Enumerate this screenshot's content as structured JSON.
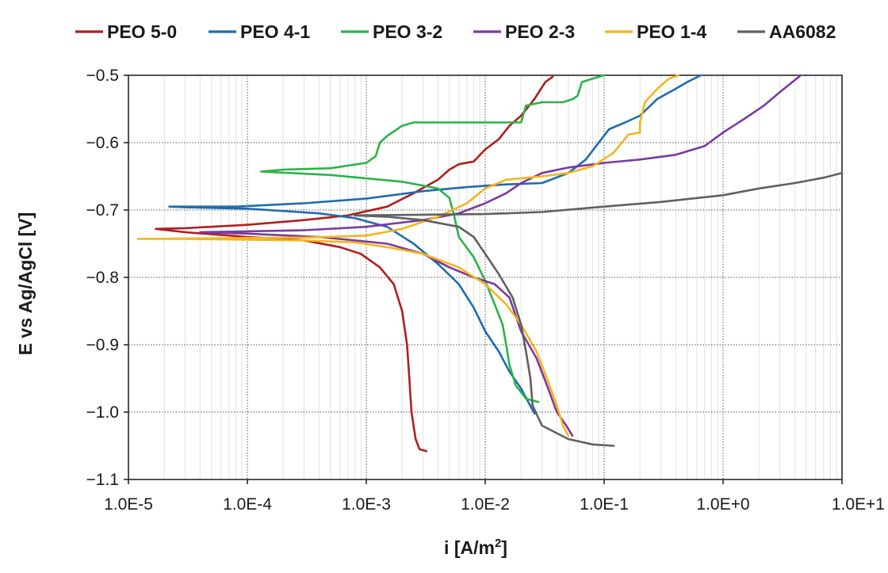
{
  "chart_data": {
    "type": "line",
    "xscale": "log",
    "xlabel": "i [A/m",
    "xlabel_superscript": "2",
    "xlabel_suffix": "]",
    "ylabel": "E  vs Ag/AgCl [V]",
    "xlim": [
      1e-05,
      10
    ],
    "ylim": [
      -1.1,
      -0.5
    ],
    "x_ticks": [
      1e-05,
      0.0001,
      0.001,
      0.01,
      0.1,
      1,
      10
    ],
    "x_tick_labels": [
      "1.0E-5",
      "1.0E-4",
      "1.0E-3",
      "1.0E-2",
      "1.0E-1",
      "1.0E+0",
      "1.0E+1"
    ],
    "y_ticks": [
      -0.5,
      -0.6,
      -0.7,
      -0.8,
      -0.9,
      -1.0,
      -1.1
    ],
    "y_tick_labels": [
      "−0.5",
      "−0.6",
      "−0.7",
      "−0.8",
      "−0.9",
      "−1.0",
      "−1.1"
    ],
    "grid": true,
    "legend_position": "top",
    "series": [
      {
        "name": "PEO 5-0",
        "color": "#b21e1e",
        "points": [
          [
            0.0032,
            -1.058
          ],
          [
            0.0028,
            -1.055
          ],
          [
            0.0026,
            -1.04
          ],
          [
            0.0024,
            -1.0
          ],
          [
            0.0023,
            -0.95
          ],
          [
            0.0022,
            -0.9
          ],
          [
            0.002,
            -0.85
          ],
          [
            0.0017,
            -0.81
          ],
          [
            0.0013,
            -0.785
          ],
          [
            0.0009,
            -0.765
          ],
          [
            0.0006,
            -0.755
          ],
          [
            0.0003,
            -0.745
          ],
          [
            0.0001,
            -0.74
          ],
          [
            3e-05,
            -0.733
          ],
          [
            1.7e-05,
            -0.728
          ],
          [
            3e-05,
            -0.727
          ],
          [
            0.0001,
            -0.722
          ],
          [
            0.0003,
            -0.715
          ],
          [
            0.0007,
            -0.708
          ],
          [
            0.0015,
            -0.695
          ],
          [
            0.0025,
            -0.675
          ],
          [
            0.004,
            -0.655
          ],
          [
            0.005,
            -0.64
          ],
          [
            0.006,
            -0.632
          ],
          [
            0.008,
            -0.628
          ],
          [
            0.01,
            -0.61
          ],
          [
            0.013,
            -0.595
          ],
          [
            0.016,
            -0.575
          ],
          [
            0.02,
            -0.56
          ],
          [
            0.026,
            -0.535
          ],
          [
            0.032,
            -0.51
          ],
          [
            0.037,
            -0.502
          ]
        ]
      },
      {
        "name": "PEO 4-1",
        "color": "#1f6cb0",
        "points": [
          [
            0.026,
            -1.002
          ],
          [
            0.023,
            -0.985
          ],
          [
            0.02,
            -0.965
          ],
          [
            0.016,
            -0.94
          ],
          [
            0.013,
            -0.91
          ],
          [
            0.01,
            -0.88
          ],
          [
            0.008,
            -0.845
          ],
          [
            0.006,
            -0.81
          ],
          [
            0.004,
            -0.78
          ],
          [
            0.0025,
            -0.75
          ],
          [
            0.0015,
            -0.725
          ],
          [
            0.0008,
            -0.712
          ],
          [
            0.0004,
            -0.705
          ],
          [
            0.0001,
            -0.698
          ],
          [
            3e-05,
            -0.696
          ],
          [
            2.2e-05,
            -0.695
          ],
          [
            8e-05,
            -0.695
          ],
          [
            0.0003,
            -0.69
          ],
          [
            0.001,
            -0.683
          ],
          [
            0.003,
            -0.672
          ],
          [
            0.007,
            -0.666
          ],
          [
            0.015,
            -0.662
          ],
          [
            0.03,
            -0.66
          ],
          [
            0.05,
            -0.645
          ],
          [
            0.07,
            -0.625
          ],
          [
            0.09,
            -0.6
          ],
          [
            0.11,
            -0.58
          ],
          [
            0.15,
            -0.57
          ],
          [
            0.2,
            -0.56
          ],
          [
            0.28,
            -0.535
          ],
          [
            0.4,
            -0.52
          ],
          [
            0.5,
            -0.51
          ],
          [
            0.65,
            -0.5
          ]
        ]
      },
      {
        "name": "PEO 3-2",
        "color": "#2bb34a",
        "points": [
          [
            0.028,
            -0.985
          ],
          [
            0.022,
            -0.98
          ],
          [
            0.018,
            -0.96
          ],
          [
            0.016,
            -0.93
          ],
          [
            0.015,
            -0.9
          ],
          [
            0.014,
            -0.87
          ],
          [
            0.012,
            -0.84
          ],
          [
            0.01,
            -0.805
          ],
          [
            0.008,
            -0.77
          ],
          [
            0.006,
            -0.74
          ],
          [
            0.0055,
            -0.71
          ],
          [
            0.005,
            -0.682
          ],
          [
            0.004,
            -0.668
          ],
          [
            0.002,
            -0.658
          ],
          [
            0.0005,
            -0.648
          ],
          [
            0.00013,
            -0.643
          ],
          [
            0.0002,
            -0.64
          ],
          [
            0.0005,
            -0.638
          ],
          [
            0.001,
            -0.63
          ],
          [
            0.0012,
            -0.62
          ],
          [
            0.0013,
            -0.6
          ],
          [
            0.0015,
            -0.59
          ],
          [
            0.002,
            -0.575
          ],
          [
            0.0025,
            -0.57
          ],
          [
            0.006,
            -0.57
          ],
          [
            0.02,
            -0.57
          ],
          [
            0.022,
            -0.545
          ],
          [
            0.03,
            -0.54
          ],
          [
            0.045,
            -0.54
          ],
          [
            0.055,
            -0.535
          ],
          [
            0.06,
            -0.53
          ],
          [
            0.065,
            -0.51
          ],
          [
            0.08,
            -0.505
          ],
          [
            0.1,
            -0.5
          ]
        ]
      },
      {
        "name": "PEO 2-3",
        "color": "#7a3aa3",
        "points": [
          [
            0.054,
            -1.035
          ],
          [
            0.048,
            -1.02
          ],
          [
            0.04,
            -1.0
          ],
          [
            0.033,
            -0.96
          ],
          [
            0.027,
            -0.92
          ],
          [
            0.02,
            -0.88
          ],
          [
            0.016,
            -0.83
          ],
          [
            0.012,
            -0.81
          ],
          [
            0.008,
            -0.8
          ],
          [
            0.005,
            -0.785
          ],
          [
            0.003,
            -0.765
          ],
          [
            0.0015,
            -0.75
          ],
          [
            0.0008,
            -0.745
          ],
          [
            0.0004,
            -0.74
          ],
          [
            0.0001,
            -0.735
          ],
          [
            4e-05,
            -0.733
          ],
          [
            8e-05,
            -0.732
          ],
          [
            0.0003,
            -0.73
          ],
          [
            0.001,
            -0.725
          ],
          [
            0.003,
            -0.715
          ],
          [
            0.006,
            -0.705
          ],
          [
            0.01,
            -0.69
          ],
          [
            0.015,
            -0.675
          ],
          [
            0.02,
            -0.66
          ],
          [
            0.03,
            -0.645
          ],
          [
            0.05,
            -0.637
          ],
          [
            0.1,
            -0.63
          ],
          [
            0.2,
            -0.625
          ],
          [
            0.4,
            -0.618
          ],
          [
            0.7,
            -0.605
          ],
          [
            1.0,
            -0.585
          ],
          [
            1.5,
            -0.565
          ],
          [
            2.2,
            -0.545
          ],
          [
            3.0,
            -0.525
          ],
          [
            4.5,
            -0.5
          ]
        ]
      },
      {
        "name": "PEO 1-4",
        "color": "#f5b51b",
        "points": [
          [
            0.05,
            -1.035
          ],
          [
            0.045,
            -1.02
          ],
          [
            0.04,
            -0.99
          ],
          [
            0.033,
            -0.95
          ],
          [
            0.027,
            -0.91
          ],
          [
            0.02,
            -0.87
          ],
          [
            0.015,
            -0.84
          ],
          [
            0.01,
            -0.81
          ],
          [
            0.006,
            -0.785
          ],
          [
            0.003,
            -0.765
          ],
          [
            0.0015,
            -0.755
          ],
          [
            0.0008,
            -0.748
          ],
          [
            0.0003,
            -0.745
          ],
          [
            0.0001,
            -0.744
          ],
          [
            3e-05,
            -0.743
          ],
          [
            1.2e-05,
            -0.743
          ],
          [
            5e-05,
            -0.742
          ],
          [
            0.0003,
            -0.741
          ],
          [
            0.001,
            -0.738
          ],
          [
            0.002,
            -0.728
          ],
          [
            0.004,
            -0.71
          ],
          [
            0.007,
            -0.69
          ],
          [
            0.01,
            -0.668
          ],
          [
            0.015,
            -0.655
          ],
          [
            0.03,
            -0.65
          ],
          [
            0.05,
            -0.645
          ],
          [
            0.08,
            -0.635
          ],
          [
            0.12,
            -0.615
          ],
          [
            0.16,
            -0.588
          ],
          [
            0.2,
            -0.585
          ],
          [
            0.2,
            -0.57
          ],
          [
            0.22,
            -0.54
          ],
          [
            0.28,
            -0.52
          ],
          [
            0.35,
            -0.505
          ],
          [
            0.42,
            -0.5
          ]
        ]
      },
      {
        "name": "AA6082",
        "color": "#606060",
        "points": [
          [
            0.12,
            -1.05
          ],
          [
            0.08,
            -1.048
          ],
          [
            0.05,
            -1.04
          ],
          [
            0.03,
            -1.02
          ],
          [
            0.025,
            -0.99
          ],
          [
            0.024,
            -0.95
          ],
          [
            0.022,
            -0.91
          ],
          [
            0.02,
            -0.87
          ],
          [
            0.017,
            -0.83
          ],
          [
            0.013,
            -0.795
          ],
          [
            0.01,
            -0.765
          ],
          [
            0.008,
            -0.74
          ],
          [
            0.006,
            -0.725
          ],
          [
            0.003,
            -0.715
          ],
          [
            0.0015,
            -0.71
          ],
          [
            0.0008,
            -0.708
          ],
          [
            0.003,
            -0.707
          ],
          [
            0.01,
            -0.706
          ],
          [
            0.03,
            -0.703
          ],
          [
            0.1,
            -0.695
          ],
          [
            0.3,
            -0.688
          ],
          [
            1.0,
            -0.678
          ],
          [
            2.0,
            -0.668
          ],
          [
            4.0,
            -0.66
          ],
          [
            7.0,
            -0.652
          ],
          [
            10.0,
            -0.645
          ]
        ]
      }
    ]
  }
}
